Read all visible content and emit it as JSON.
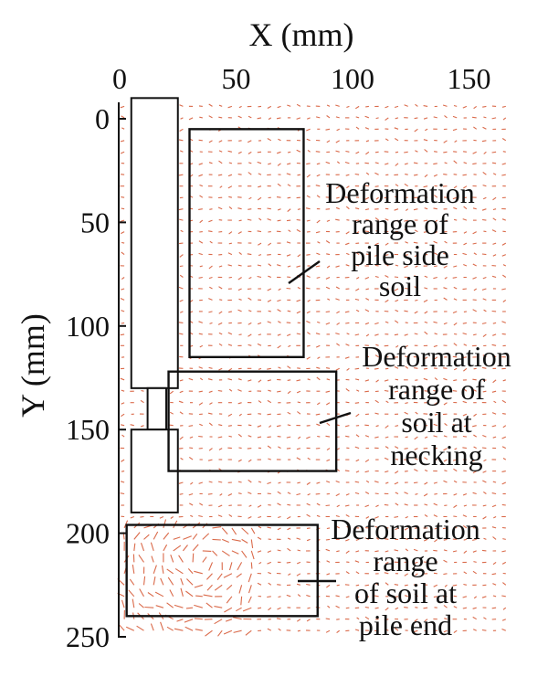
{
  "chart_data": {
    "type": "vector-field",
    "title": "",
    "xlabel": "X (mm)",
    "ylabel": "Y (mm)",
    "xlim": [
      0,
      150
    ],
    "ylim": [
      0,
      250
    ],
    "y_axis_inverted": true,
    "x_axis_position": "top",
    "x_ticks": [
      0,
      50,
      100,
      150
    ],
    "y_ticks": [
      0,
      50,
      100,
      150,
      200,
      250
    ],
    "grid": false,
    "vector_color": "#d4502a",
    "pile_outline": [
      {
        "name": "pile-upper-segment",
        "x": [
          5,
          25
        ],
        "y": [
          -10,
          130
        ]
      },
      {
        "name": "pile-necking-segment",
        "x": [
          12,
          20
        ],
        "y": [
          130,
          150
        ]
      },
      {
        "name": "pile-lower-segment",
        "x": [
          5,
          25
        ],
        "y": [
          150,
          190
        ]
      }
    ],
    "regions": [
      {
        "id": "pile-side-soil",
        "label_lines": [
          "Deformation",
          "range of",
          "pile side",
          "soil"
        ],
        "x": [
          30,
          79
        ],
        "y": [
          5,
          115
        ]
      },
      {
        "id": "soil-at-necking",
        "label_lines": [
          "Deformation",
          "range of",
          "soil at",
          "necking"
        ],
        "x": [
          21,
          93
        ],
        "y": [
          122,
          170
        ]
      },
      {
        "id": "soil-at-pile-end",
        "label_lines": [
          "Deformation",
          "range",
          "of soil at",
          "pile end"
        ],
        "x": [
          3,
          85
        ],
        "y": [
          196,
          240
        ]
      }
    ]
  }
}
